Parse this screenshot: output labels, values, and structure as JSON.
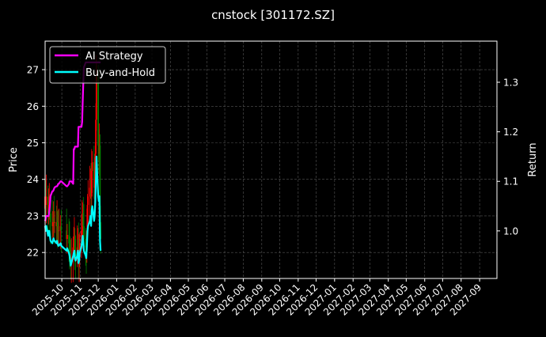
{
  "chart_data": {
    "type": "line",
    "title": "cnstock [301172.SZ]",
    "ylabel_left": "Price",
    "ylabel_right": "Return",
    "xlim": [
      "2025-09-03",
      "2027-09-30"
    ],
    "ylim_left": [
      21.29,
      27.78
    ],
    "ylim_right": [
      0.904,
      1.383
    ],
    "grid": true,
    "legend_placement": "top-left",
    "x_tick_labels": [
      "2025-10",
      "2025-11",
      "2025-12",
      "2026-01",
      "2026-02",
      "2026-03",
      "2026-04",
      "2026-05",
      "2026-06",
      "2026-07",
      "2026-08",
      "2026-09",
      "2026-10",
      "2026-11",
      "2026-12",
      "2027-01",
      "2027-02",
      "2027-03",
      "2027-04",
      "2027-05",
      "2027-06",
      "2027-07",
      "2027-08",
      "2027-09"
    ],
    "y_left_ticks": [
      22,
      23,
      24,
      25,
      26,
      27
    ],
    "y_right_ticks": [
      1.0,
      1.1,
      1.2,
      1.3
    ],
    "dates": [
      "2025-09-03",
      "2025-09-04",
      "2025-09-05",
      "2025-09-08",
      "2025-09-09",
      "2025-09-10",
      "2025-09-11",
      "2025-09-12",
      "2025-09-15",
      "2025-09-16",
      "2025-09-17",
      "2025-09-18",
      "2025-09-19",
      "2025-09-22",
      "2025-09-23",
      "2025-09-24",
      "2025-09-25",
      "2025-09-26",
      "2025-09-29",
      "2025-09-30",
      "2025-10-09",
      "2025-10-10",
      "2025-10-13",
      "2025-10-14",
      "2025-10-15",
      "2025-10-16",
      "2025-10-17",
      "2025-10-20",
      "2025-10-21",
      "2025-10-22",
      "2025-10-23",
      "2025-10-24",
      "2025-10-27",
      "2025-10-28",
      "2025-10-29",
      "2025-10-30",
      "2025-10-31",
      "2025-11-03",
      "2025-11-04",
      "2025-11-05",
      "2025-11-06",
      "2025-11-07",
      "2025-11-10",
      "2025-11-11",
      "2025-11-12",
      "2025-11-13",
      "2025-11-14",
      "2025-11-17",
      "2025-11-18",
      "2025-11-19",
      "2025-11-20",
      "2025-11-21",
      "2025-11-24",
      "2025-11-25",
      "2025-11-26",
      "2025-11-27",
      "2025-11-28",
      "2025-12-01",
      "2025-12-02",
      "2025-12-03",
      "2025-12-04",
      "2025-12-05"
    ],
    "price_open_first": 23.2,
    "price_close": [
      23.53,
      23.3,
      23.53,
      23.07,
      23.3,
      23.3,
      23.07,
      22.83,
      22.72,
      22.83,
      22.95,
      22.83,
      22.83,
      22.72,
      22.83,
      22.72,
      22.6,
      22.6,
      22.72,
      22.6,
      22.37,
      22.48,
      22.25,
      22.14,
      21.9,
      21.67,
      21.79,
      22.14,
      22.25,
      22.37,
      22.02,
      21.9,
      22.14,
      22.37,
      21.79,
      21.9,
      22.25,
      22.6,
      22.83,
      23.07,
      22.72,
      22.37,
      22.14,
      22.02,
      22.6,
      23.3,
      23.53,
      23.77,
      24.0,
      23.53,
      24.23,
      24.47,
      23.77,
      24.0,
      24.7,
      25.63,
      26.8,
      24.93,
      24.7,
      24.93,
      22.83,
      22.37
    ],
    "up_color": "#ff0000",
    "down_color": "#008000",
    "series": [
      {
        "name": "AI Strategy",
        "color": "#ff00ff",
        "values": [
          1.02,
          1.025,
          1.03,
          1.03,
          1.03,
          1.04,
          1.05,
          1.07,
          1.08,
          1.08,
          1.082,
          1.085,
          1.088,
          1.09,
          1.09,
          1.092,
          1.095,
          1.095,
          1.1,
          1.1,
          1.09,
          1.09,
          1.095,
          1.1,
          1.1,
          1.1,
          1.1,
          1.095,
          1.165,
          1.165,
          1.17,
          1.17,
          1.17,
          1.17,
          1.21,
          1.21,
          1.21,
          1.21,
          1.22,
          1.26,
          1.3,
          1.33,
          1.34,
          1.34,
          1.34,
          1.34,
          1.34,
          1.34,
          1.34,
          1.34,
          1.34,
          1.34,
          1.34,
          1.34,
          1.34,
          1.34,
          1.34,
          1.34,
          1.34,
          1.34,
          1.34,
          1.34
        ]
      },
      {
        "name": "Buy-and-Hold",
        "color": "#00ffff",
        "values": [
          1.01,
          1.0,
          1.01,
          0.99,
          1.0,
          1.0,
          0.99,
          0.98,
          0.975,
          0.98,
          0.985,
          0.98,
          0.98,
          0.975,
          0.98,
          0.975,
          0.97,
          0.97,
          0.975,
          0.97,
          0.96,
          0.965,
          0.955,
          0.95,
          0.94,
          0.93,
          0.935,
          0.95,
          0.955,
          0.96,
          0.945,
          0.94,
          0.95,
          0.96,
          0.935,
          0.94,
          0.955,
          0.97,
          0.98,
          0.99,
          0.975,
          0.96,
          0.95,
          0.945,
          0.97,
          1.0,
          1.01,
          1.02,
          1.03,
          1.01,
          1.04,
          1.05,
          1.02,
          1.03,
          1.06,
          1.1,
          1.15,
          1.07,
          1.06,
          1.07,
          0.98,
          0.96
        ]
      }
    ]
  }
}
